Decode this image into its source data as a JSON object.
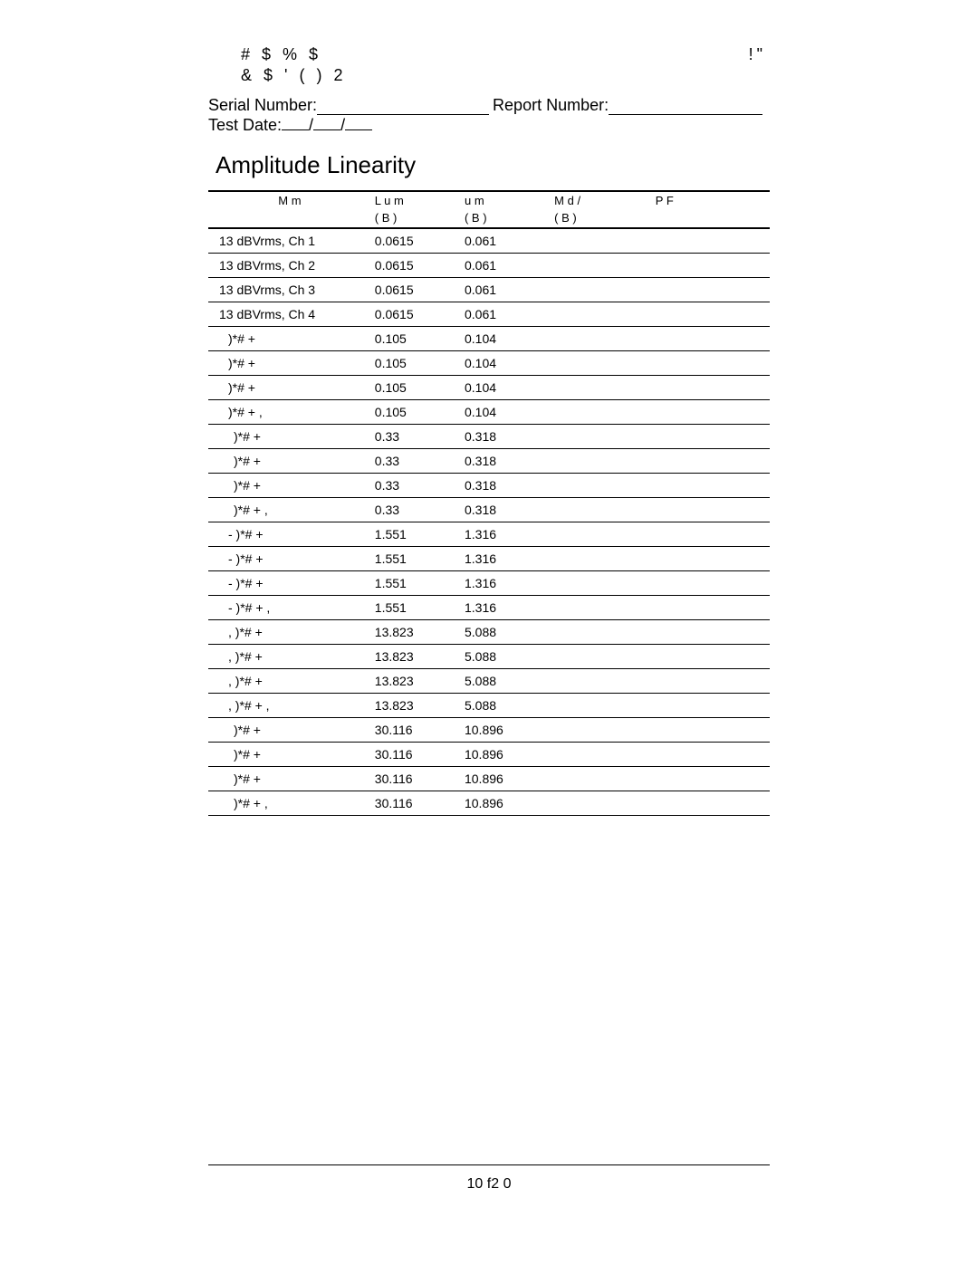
{
  "header": {
    "symbol_line1_left": "# $    % $",
    "symbol_line1_right": "!\"",
    "symbol_line2": "& $     '   (   )  2",
    "serial_label": "Serial Number:",
    "report_label": "Report Number:",
    "test_date_label": "Test Date:",
    "date_sep": "/"
  },
  "title": "Amplitude Linearity",
  "columns": {
    "measurement_h1": "M m",
    "lower_h1": "L u m",
    "upper_h1": "u m",
    "mval_h1": "M d /",
    "pf_h1": "P F",
    "unit": "( B )"
  },
  "rows": [
    {
      "label": "13 dBVrms, Ch 1",
      "indent": 0,
      "low": "0.0615",
      "upp": "0.061"
    },
    {
      "label": "13 dBVrms, Ch 2",
      "indent": 0,
      "low": "0.0615",
      "upp": "0.061"
    },
    {
      "label": "13 dBVrms, Ch 3",
      "indent": 0,
      "low": "0.0615",
      "upp": "0.061"
    },
    {
      "label": "13 dBVrms, Ch 4",
      "indent": 0,
      "low": "0.0615",
      "upp": "0.061"
    },
    {
      "label": ")*#  +",
      "indent": 1,
      "low": "0.105",
      "upp": "0.104"
    },
    {
      "label": ")*#  +",
      "indent": 1,
      "low": "0.105",
      "upp": "0.104"
    },
    {
      "label": ")*#  +",
      "indent": 1,
      "low": "0.105",
      "upp": "0.104"
    },
    {
      "label": ")*#  +   ,",
      "indent": 1,
      "low": "0.105",
      "upp": "0.104"
    },
    {
      "label": ")*#  +",
      "indent": 2,
      "low": "0.33",
      "upp": "0.318"
    },
    {
      "label": ")*#  +",
      "indent": 2,
      "low": "0.33",
      "upp": "0.318"
    },
    {
      "label": ")*#  +",
      "indent": 2,
      "low": "0.33",
      "upp": "0.318"
    },
    {
      "label": ")*#  +   ,",
      "indent": 2,
      "low": "0.33",
      "upp": "0.318"
    },
    {
      "label": "- )*#  +",
      "indent": 1,
      "low": "1.551",
      "upp": "1.316"
    },
    {
      "label": "- )*#  +",
      "indent": 1,
      "low": "1.551",
      "upp": "1.316"
    },
    {
      "label": "- )*#  +",
      "indent": 1,
      "low": "1.551",
      "upp": "1.316"
    },
    {
      "label": "- )*#  +   ,",
      "indent": 1,
      "low": "1.551",
      "upp": "1.316"
    },
    {
      "label": ",  )*#  +",
      "indent": 1,
      "low": "13.823",
      "upp": "5.088"
    },
    {
      "label": ",  )*#  +",
      "indent": 1,
      "low": "13.823",
      "upp": "5.088"
    },
    {
      "label": ",  )*#  +",
      "indent": 1,
      "low": "13.823",
      "upp": "5.088"
    },
    {
      "label": ",  )*#  +   ,",
      "indent": 1,
      "low": "13.823",
      "upp": "5.088"
    },
    {
      "label": ")*#  +",
      "indent": 2,
      "low": "30.116",
      "upp": "10.896"
    },
    {
      "label": ")*#  +",
      "indent": 2,
      "low": "30.116",
      "upp": "10.896"
    },
    {
      "label": ")*#  +",
      "indent": 2,
      "low": "30.116",
      "upp": "10.896"
    },
    {
      "label": ")*#  +   ,",
      "indent": 2,
      "low": "30.116",
      "upp": "10.896"
    }
  ],
  "footer": {
    "page_num": "10 f2 0"
  }
}
